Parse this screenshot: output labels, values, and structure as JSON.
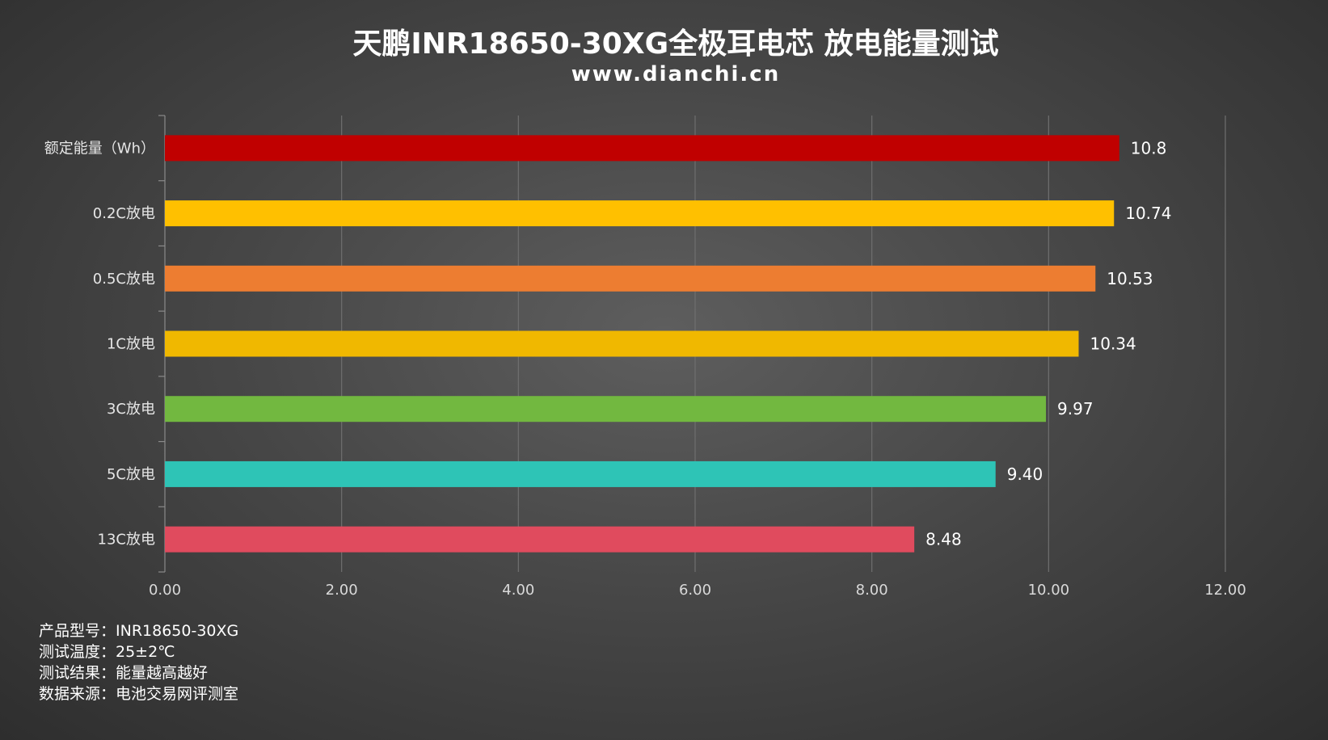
{
  "chart_data": {
    "type": "bar",
    "orientation": "horizontal",
    "title": "天鹏INR18650-30XG全极耳电芯 放电能量测试",
    "subtitle": "www.dianchi.cn",
    "categories": [
      "额定能量（Wh）",
      "0.2C放电",
      "0.5C放电",
      "1C放电",
      "3C放电",
      "5C放电",
      "13C放电"
    ],
    "values": [
      10.8,
      10.74,
      10.53,
      10.34,
      9.97,
      9.4,
      8.48
    ],
    "value_labels": [
      "10.8",
      "10.74",
      "10.53",
      "10.34",
      "9.97",
      "9.40",
      "8.48"
    ],
    "bar_colors": [
      "#c00000",
      "#ffc000",
      "#ed7d31",
      "#f0b800",
      "#72b840",
      "#2ec4b6",
      "#e04b5e"
    ],
    "xlim": [
      0,
      12
    ],
    "x_ticks": [
      0,
      2,
      4,
      6,
      8,
      10,
      12
    ],
    "x_tick_labels": [
      "0.00",
      "2.00",
      "4.00",
      "6.00",
      "8.00",
      "10.00",
      "12.00"
    ],
    "grid": "vertical",
    "legend": "none"
  },
  "notes": [
    "产品型号：INR18650-30XG",
    "测试温度：25±2℃",
    "测试结果：能量越高越好",
    "数据来源：电池交易网评测室"
  ]
}
